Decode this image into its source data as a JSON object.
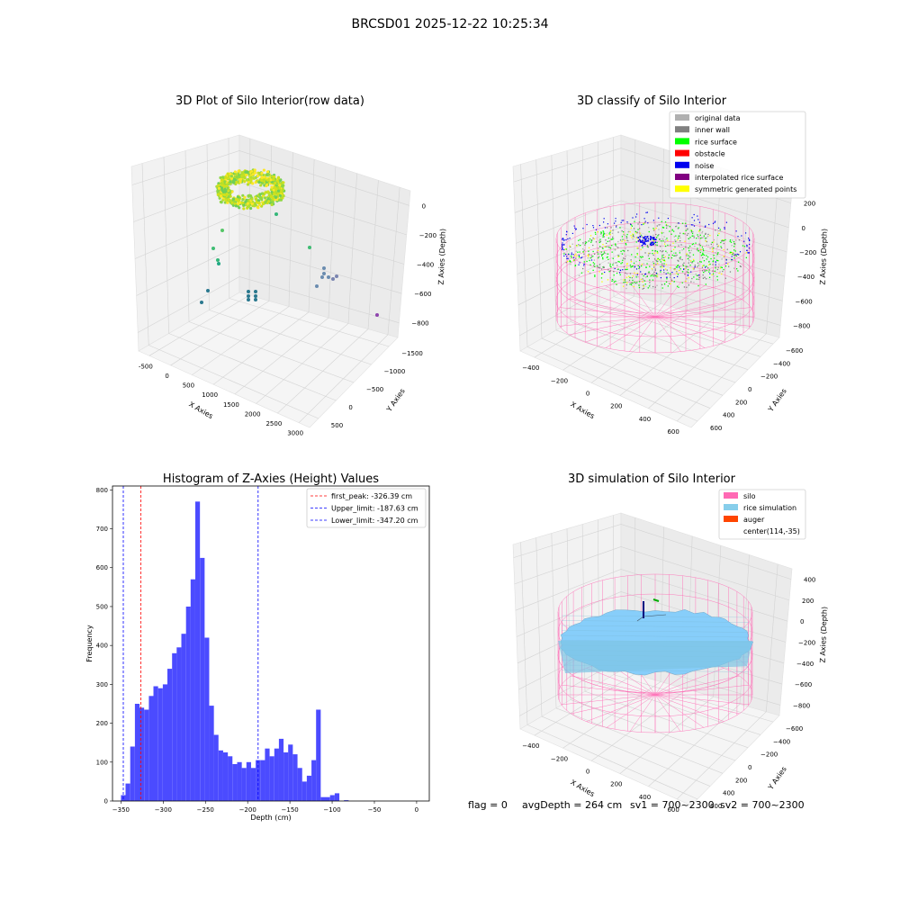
{
  "figure_title": "BRCSD01 2025-12-22 10:25:34",
  "footer": {
    "flag": "flag = 0",
    "avg_depth": "avgDepth = 264 cm",
    "sv1": "sv1 = 700~2300",
    "sv2": "sv2 = 700~2300"
  },
  "colors": {
    "hist_bar": "#4b4bff",
    "first_peak_line": "#ff0000",
    "limit_line": "#0000ff",
    "silo": "#ff69b4",
    "rice": "#87cefa",
    "grid_pane": "#f2f2f2"
  },
  "chart_data": [
    {
      "type": "scatter3d",
      "title": "3D Plot of Silo Interior(row data)",
      "xlabel": "X Axies",
      "ylabel": "Y Axies",
      "zlabel": "Z Axies (Depth)",
      "x_ticks": [
        "-500",
        "0",
        "500",
        "1000",
        "1500",
        "2000",
        "2500",
        "3000"
      ],
      "y_ticks": [
        "500",
        "0",
        "−500",
        "−1000",
        "−1500"
      ],
      "z_ticks": [
        "0",
        "−200",
        "−400",
        "−600",
        "−800"
      ],
      "colormap": "viridis"
    },
    {
      "type": "scatter3d",
      "title": "3D classify of Silo Interior",
      "xlabel": "X Axies",
      "ylabel": "Y Axies",
      "zlabel": "Z Axies (Depth)",
      "x_ticks": [
        "−400",
        "−200",
        "0",
        "200",
        "400",
        "600"
      ],
      "y_ticks": [
        "600",
        "400",
        "200",
        "0",
        "−200",
        "−400",
        "−600"
      ],
      "z_ticks": [
        "200",
        "0",
        "−200",
        "−400",
        "−600",
        "−800"
      ],
      "z_top_partial": "00",
      "legend": [
        {
          "label": "original data",
          "color": "#b0b0b0"
        },
        {
          "label": "inner wall",
          "color": "#808080"
        },
        {
          "label": "rice surface",
          "color": "#00ff00"
        },
        {
          "label": "obstacle",
          "color": "#ff0000"
        },
        {
          "label": "noise",
          "color": "#0000ee"
        },
        {
          "label": "interpolated rice surface",
          "color": "#800080"
        },
        {
          "label": "symmetric generated points",
          "color": "#ffff00"
        }
      ]
    },
    {
      "type": "bar",
      "title": "Histogram of Z-Axies (Height) Values",
      "xlabel": "Depth (cm)",
      "ylabel": "Frequency",
      "xlim": [
        -360,
        15
      ],
      "ylim": [
        0,
        810
      ],
      "x_ticks": [
        -350,
        -300,
        -250,
        -200,
        -150,
        -100,
        -50,
        0
      ],
      "x_tick_labels": [
        "−350",
        "−300",
        "−250",
        "−200",
        "−150",
        "−100",
        "−50",
        "0"
      ],
      "y_ticks": [
        0,
        100,
        200,
        300,
        400,
        500,
        600,
        700,
        800
      ],
      "y_tick_labels": [
        "0",
        "100",
        "200",
        "300",
        "400",
        "500",
        "600",
        "700",
        "800"
      ],
      "bin_start": -350,
      "bin_width": 5.5,
      "values": [
        15,
        45,
        140,
        250,
        240,
        235,
        270,
        295,
        290,
        300,
        340,
        380,
        395,
        430,
        500,
        570,
        770,
        625,
        420,
        245,
        170,
        130,
        125,
        115,
        95,
        100,
        85,
        100,
        85,
        105,
        105,
        135,
        115,
        135,
        160,
        125,
        145,
        120,
        85,
        50,
        65,
        105,
        235,
        10,
        10,
        15,
        20,
        0,
        2,
        0
      ],
      "legend_position": "upper right",
      "vlines": [
        {
          "label": "first_peak: -326.39 cm",
          "x": -326.39,
          "color": "#ff0000"
        },
        {
          "label": "Upper_limit: -187.63 cm",
          "x": -187.63,
          "color": "#0000ff"
        },
        {
          "label": "Lower_limit: -347.20 cm",
          "x": -347.2,
          "color": "#0000ff"
        }
      ]
    },
    {
      "type": "surface3d",
      "title": "3D simulation of Silo Interior",
      "xlabel": "X Axies",
      "ylabel": "Y Axies",
      "zlabel": "Z Axies (Depth)",
      "x_ticks": [
        "−400",
        "−200",
        "0",
        "200",
        "400",
        "600"
      ],
      "y_ticks": [
        "600",
        "400",
        "200",
        "0",
        "−200",
        "−400",
        "−600"
      ],
      "z_ticks": [
        "400",
        "200",
        "0",
        "−200",
        "−400",
        "−600",
        "−800"
      ],
      "legend": [
        {
          "label": "silo",
          "color": "#ff69b4"
        },
        {
          "label": "rice simulation",
          "color": "#87ceeb"
        },
        {
          "label": "auger",
          "color": "#ff4500"
        },
        {
          "label": "center(114,-35)",
          "color": ""
        }
      ]
    }
  ]
}
